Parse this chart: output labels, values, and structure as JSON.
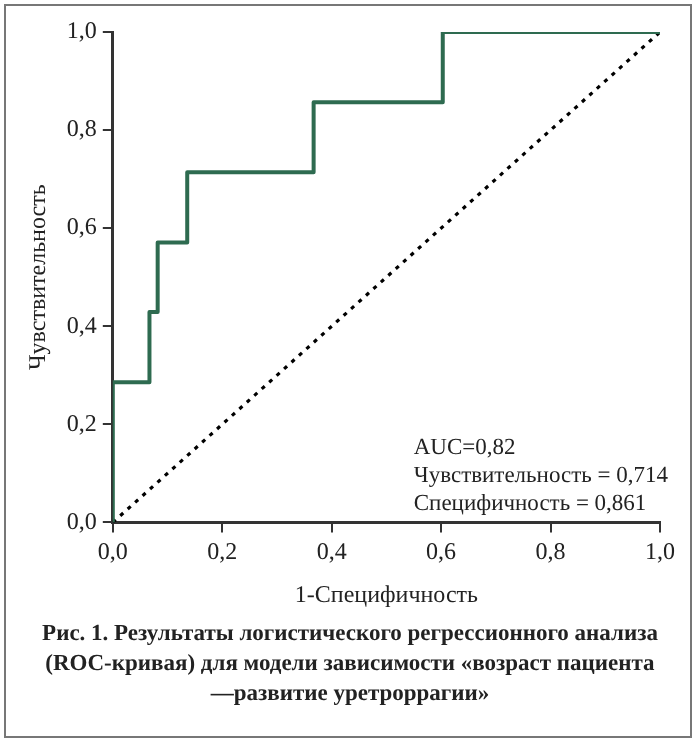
{
  "chart_data": {
    "type": "step",
    "title": "Рис. 1. Результаты логистического регрессионного анализа (ROC-кривая) для модели зависимости «возраст пациента—развитие уретроррагии»",
    "xlabel": "1-Специфичность",
    "ylabel": "Чувствительность",
    "annotations": [
      "AUC=0,82",
      "Чувствительность = 0,714",
      "Специфичность = 0,861"
    ],
    "series": [
      {
        "color": "#2e6b50",
        "x": [
          0,
          0,
          0.067,
          0.082,
          0.136,
          0.367,
          0.603,
          1
        ],
        "values": [
          0,
          0.286,
          0.429,
          0.571,
          0.714,
          0.857,
          1,
          1
        ],
        "line_style": "solid"
      },
      {
        "type": "line",
        "color": "#000000",
        "x": [
          0,
          1
        ],
        "values": [
          0,
          1
        ],
        "line_style": "dotted"
      }
    ],
    "xlim": [
      0,
      1
    ],
    "ylim": [
      0,
      1
    ],
    "xticks": [
      {
        "value": 0,
        "label": "0,0"
      },
      {
        "value": 0.2,
        "label": "0,2"
      },
      {
        "value": 0.4,
        "label": "0,4"
      },
      {
        "value": 0.6,
        "label": "0,6"
      },
      {
        "value": 0.8,
        "label": "0,8"
      },
      {
        "value": 1,
        "label": "1,0"
      }
    ],
    "yticks": [
      {
        "value": 0,
        "label": "0,0"
      },
      {
        "value": 0.2,
        "label": "0,2"
      },
      {
        "value": 0.4,
        "label": "0,4"
      },
      {
        "value": 0.6,
        "label": "0,6"
      },
      {
        "value": 0.8,
        "label": "0,8"
      },
      {
        "value": 1,
        "label": "1,0"
      }
    ],
    "grid": false,
    "legend": false,
    "marker": "none"
  }
}
